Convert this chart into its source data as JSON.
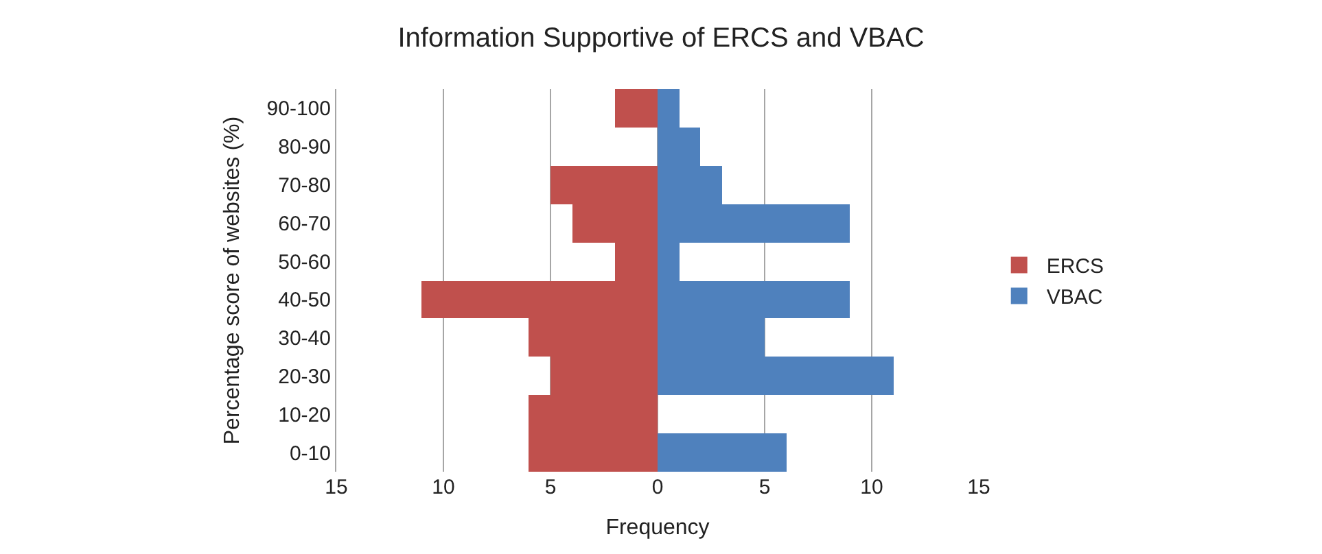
{
  "chart_data": {
    "type": "bar",
    "orientation": "horizontal",
    "stacked": true,
    "title": "Information Supportive of ERCS and VBAC",
    "xlabel": "Frequency",
    "ylabel": "Percentage score of websites (%)",
    "categories": [
      "90-100",
      "80-90",
      "70-80",
      "60-70",
      "50-60",
      "40-50",
      "30-40",
      "20-30",
      "10-20",
      "0-10"
    ],
    "series": [
      {
        "name": "ERCS",
        "color": "#c0504d",
        "values": [
          -2,
          0,
          -5,
          -4,
          -2,
          -11,
          -6,
          -5,
          -6,
          -6
        ]
      },
      {
        "name": "VBAC",
        "color": "#4f81bd",
        "values": [
          1,
          2,
          3,
          9,
          1,
          9,
          5,
          11,
          0,
          6
        ]
      }
    ],
    "xlim": [
      -15,
      15
    ],
    "xticks": [
      {
        "value": -15,
        "label": "15"
      },
      {
        "value": -10,
        "label": "10"
      },
      {
        "value": -5,
        "label": "5"
      },
      0,
      5,
      10,
      15
    ],
    "grid": "x",
    "legend": "right"
  }
}
